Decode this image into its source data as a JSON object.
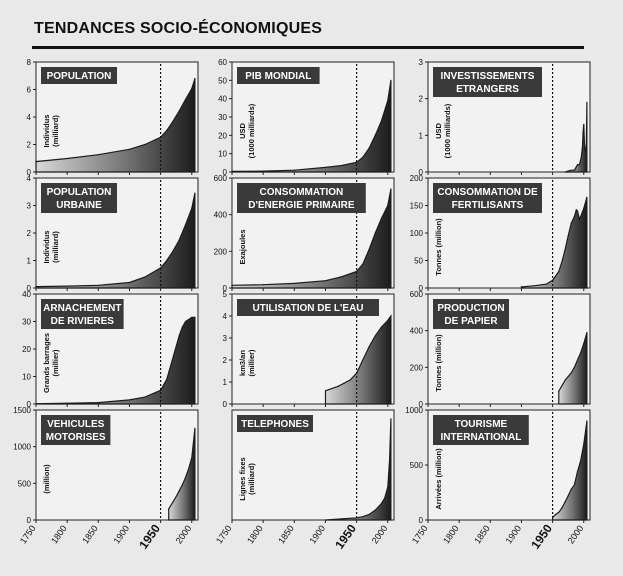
{
  "page": {
    "title": "TENDANCES SOCIO-ÉCONOMIQUES"
  },
  "shared_axis": {
    "x_ticks": [
      "1750",
      "1800",
      "1850",
      "1900",
      "1950",
      "2000"
    ],
    "x_tick_values": [
      1750,
      1800,
      1850,
      1900,
      1950,
      2000
    ],
    "marker_year": 1950,
    "xlim": [
      1750,
      2010
    ]
  },
  "colors": {
    "fill_dark": "#1c1c1c",
    "fill_light": "#d8d8d8",
    "panel_bg": "#f2f2f2",
    "label_bg": "#3a3a3a",
    "label_text": "#ffffff"
  },
  "chart_data": [
    {
      "id": "population",
      "type": "area",
      "title": [
        "POPULATION"
      ],
      "ylabel": [
        "Individus",
        "(milliard)"
      ],
      "ylim": [
        0,
        8
      ],
      "yticks": [
        0,
        2,
        4,
        6,
        8
      ],
      "x": [
        1750,
        1800,
        1850,
        1900,
        1925,
        1950,
        1960,
        1970,
        1980,
        1990,
        2000,
        2005
      ],
      "values": [
        0.76,
        0.98,
        1.26,
        1.65,
        2.0,
        2.52,
        3.02,
        3.7,
        4.44,
        5.27,
        6.07,
        6.8
      ]
    },
    {
      "id": "pib",
      "type": "area",
      "title": [
        "PIB MONDIAL"
      ],
      "ylabel": [
        "USD",
        "(1000 milliards)"
      ],
      "ylim": [
        0,
        60
      ],
      "yticks": [
        0,
        10,
        20,
        30,
        40,
        50,
        60
      ],
      "x": [
        1750,
        1800,
        1850,
        1900,
        1925,
        1950,
        1960,
        1970,
        1980,
        1990,
        2000,
        2005
      ],
      "values": [
        0.3,
        0.5,
        1.0,
        2.5,
        3.5,
        5.3,
        8.0,
        13.0,
        20.0,
        28.0,
        39.0,
        50.0
      ]
    },
    {
      "id": "investissements",
      "type": "area",
      "title": [
        "INVESTISSEMENTS",
        "ETRANGERS"
      ],
      "ylabel": [
        "USD",
        "(1000 milliards)"
      ],
      "ylim": [
        0,
        3
      ],
      "yticks": [
        0,
        1,
        2,
        3
      ],
      "x": [
        1970,
        1980,
        1985,
        1990,
        1993,
        1996,
        1998,
        1999,
        2000,
        2001,
        2002,
        2003,
        2004,
        2005
      ],
      "values": [
        0.0,
        0.05,
        0.05,
        0.2,
        0.2,
        0.4,
        0.7,
        1.1,
        1.3,
        0.8,
        0.6,
        0.55,
        0.7,
        1.9
      ]
    },
    {
      "id": "population-urbaine",
      "type": "area",
      "title": [
        "POPULATION",
        "URBAINE"
      ],
      "ylabel": [
        "Individus",
        "(milliard)"
      ],
      "ylim": [
        0,
        4
      ],
      "yticks": [
        0,
        1,
        2,
        3,
        4
      ],
      "x": [
        1750,
        1800,
        1850,
        1900,
        1925,
        1950,
        1960,
        1970,
        1980,
        1990,
        2000,
        2005
      ],
      "values": [
        0.05,
        0.07,
        0.1,
        0.2,
        0.4,
        0.73,
        1.0,
        1.35,
        1.75,
        2.3,
        2.9,
        3.45
      ]
    },
    {
      "id": "energie",
      "type": "area",
      "title": [
        "CONSOMMATION",
        "D'ENERGIE PRIMAIRE"
      ],
      "ylabel": [
        "Exajoules"
      ],
      "ylim": [
        0,
        600
      ],
      "yticks": [
        0,
        200,
        400,
        600
      ],
      "x": [
        1750,
        1800,
        1850,
        1900,
        1925,
        1950,
        1960,
        1970,
        1980,
        1990,
        2000,
        2005
      ],
      "values": [
        15,
        18,
        25,
        40,
        60,
        90,
        130,
        210,
        300,
        380,
        450,
        540
      ]
    },
    {
      "id": "fertilisants",
      "type": "area",
      "title": [
        "CONSOMMATION DE",
        "FERTILISANTS"
      ],
      "ylabel": [
        "Tonnes (million)"
      ],
      "ylim": [
        0,
        200
      ],
      "yticks": [
        0,
        50,
        100,
        150,
        200
      ],
      "x": [
        1900,
        1920,
        1940,
        1950,
        1955,
        1960,
        1965,
        1970,
        1975,
        1980,
        1985,
        1988,
        1990,
        1993,
        1995,
        2000,
        2005
      ],
      "values": [
        2,
        4,
        7,
        14,
        22,
        30,
        48,
        70,
        95,
        118,
        130,
        142,
        140,
        125,
        130,
        145,
        165
      ]
    },
    {
      "id": "rivieres",
      "type": "area",
      "title": [
        "ARNACHEMENT",
        "DE RIVIERES"
      ],
      "ylabel": [
        "Grands barrages",
        "(millier)"
      ],
      "ylim": [
        0,
        40
      ],
      "yticks": [
        0,
        10,
        20,
        30,
        40
      ],
      "x": [
        1750,
        1800,
        1850,
        1900,
        1925,
        1950,
        1960,
        1970,
        1980,
        1985,
        1990,
        2000,
        2005
      ],
      "values": [
        0.1,
        0.3,
        0.5,
        1.5,
        2.5,
        5.0,
        9.0,
        17.0,
        25.0,
        28.0,
        30.0,
        31.5,
        31.5
      ]
    },
    {
      "id": "eau",
      "type": "area",
      "title": [
        "UTILISATION DE L'EAU"
      ],
      "ylabel": [
        "km3/an",
        "(millier)"
      ],
      "ylim": [
        0,
        5
      ],
      "yticks": [
        0,
        1,
        2,
        3,
        4,
        5
      ],
      "x": [
        1900,
        1910,
        1920,
        1930,
        1940,
        1950,
        1960,
        1970,
        1980,
        1990,
        2000,
        2005
      ],
      "values": [
        0.6,
        0.7,
        0.8,
        0.95,
        1.1,
        1.4,
        2.0,
        2.6,
        3.1,
        3.5,
        3.8,
        4.0
      ]
    },
    {
      "id": "papier",
      "type": "area",
      "title": [
        "PRODUCTION",
        "DE PAPIER"
      ],
      "ylabel": [
        "Tonnes (million)"
      ],
      "ylim": [
        0,
        600
      ],
      "yticks": [
        0,
        200,
        400,
        600
      ],
      "x": [
        1960,
        1965,
        1970,
        1975,
        1980,
        1985,
        1990,
        1995,
        2000,
        2005
      ],
      "values": [
        70,
        100,
        130,
        150,
        170,
        200,
        240,
        280,
        330,
        390
      ]
    },
    {
      "id": "vehicules",
      "type": "area",
      "title": [
        "VEHICULES",
        "MOTORISES"
      ],
      "ylabel": [
        "(million)"
      ],
      "ylim": [
        0,
        1500
      ],
      "yticks": [
        0,
        500,
        1000,
        1500
      ],
      "x": [
        1963,
        1970,
        1975,
        1980,
        1985,
        1990,
        1995,
        2000,
        2005
      ],
      "values": [
        150,
        250,
        320,
        400,
        480,
        580,
        700,
        850,
        1250
      ]
    },
    {
      "id": "telephones",
      "type": "area",
      "title": [
        "TELEPHONES"
      ],
      "ylabel": [
        "Lignes fixes",
        "(milliard)"
      ],
      "ylim": [
        0,
        1
      ],
      "yticks": [],
      "x": [
        1900,
        1950,
        1960,
        1970,
        1980,
        1990,
        1995,
        2000,
        2003,
        2005
      ],
      "values": [
        0.0,
        0.02,
        0.03,
        0.05,
        0.09,
        0.15,
        0.2,
        0.3,
        0.55,
        0.92
      ]
    },
    {
      "id": "tourisme",
      "type": "area",
      "title": [
        "TOURISME",
        "INTERNATIONAL"
      ],
      "ylabel": [
        "Arrivées (million)"
      ],
      "ylim": [
        0,
        1000
      ],
      "yticks": [
        0,
        500,
        1000
      ],
      "x": [
        1950,
        1955,
        1960,
        1965,
        1970,
        1975,
        1980,
        1985,
        1990,
        1995,
        2000,
        2005
      ],
      "values": [
        25,
        50,
        70,
        110,
        165,
        220,
        280,
        320,
        440,
        540,
        690,
        900
      ]
    }
  ]
}
